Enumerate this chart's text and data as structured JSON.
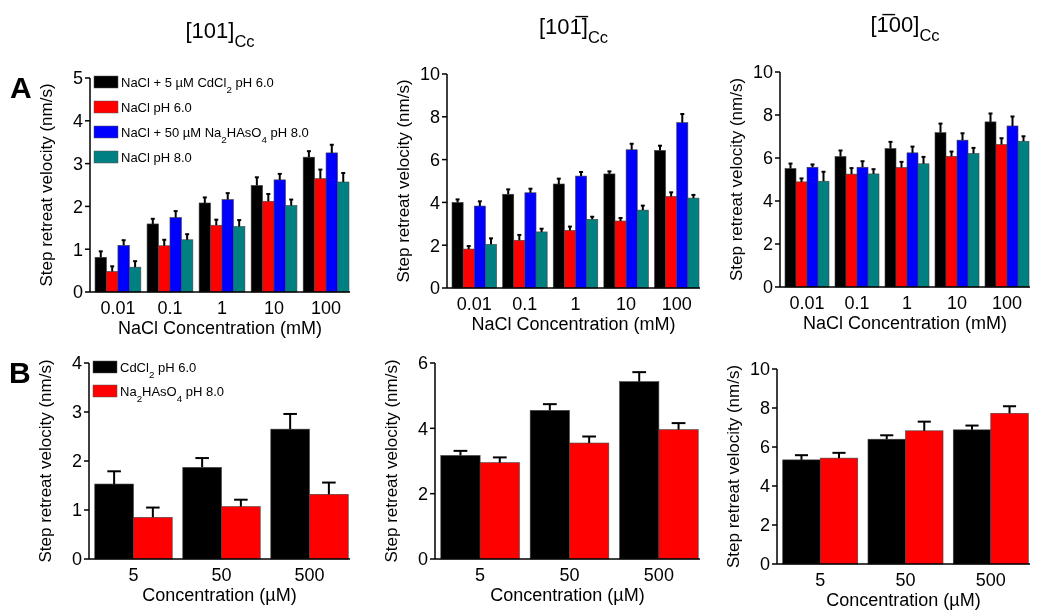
{
  "chart_data": [
    {
      "type": "bar",
      "title": "[101]$_{Cc}$",
      "xlabel": "NaCl Concentration (mM)",
      "ylabel": "Step retreat velocity (nm/s)",
      "annotations": [
        "A"
      ],
      "categories": [
        "0.01",
        "0.1",
        "1",
        "10",
        "100"
      ],
      "ylim": [
        0,
        5
      ],
      "yticks": [
        0,
        1,
        2,
        3,
        4,
        5
      ],
      "legend": "top left",
      "series": [
        {
          "name": "NaCl + 5 µM CdCl$_{2}$ pH 6.0",
          "color": "#000000",
          "values": [
            0.81,
            1.59,
            2.08,
            2.49,
            3.15
          ],
          "errors": [
            [
              0.81,
              0.95
            ],
            [
              1.59,
              1.71
            ],
            [
              2.08,
              2.21
            ],
            [
              2.49,
              2.68
            ],
            [
              3.15,
              3.29
            ]
          ]
        },
        {
          "name": "NaCl pH 6.0",
          "color": "#ff0000",
          "values": [
            0.48,
            1.08,
            1.56,
            2.12,
            2.65
          ],
          "errors": [
            [
              0.48,
              0.6
            ],
            [
              1.08,
              1.22
            ],
            [
              1.56,
              1.69
            ],
            [
              2.12,
              2.29
            ],
            [
              2.65,
              2.86
            ]
          ]
        },
        {
          "name": "NaCl + 50 µM Na$_{2}$HAsO$_{4}$ pH 8.0",
          "color": "#0000ff",
          "values": [
            1.09,
            1.74,
            2.16,
            2.62,
            3.25
          ],
          "errors": [
            [
              1.09,
              1.21
            ],
            [
              1.74,
              1.89
            ],
            [
              2.16,
              2.31
            ],
            [
              2.62,
              2.76
            ],
            [
              3.25,
              3.44
            ]
          ]
        },
        {
          "name": "NaCl pH 8.0",
          "color": "#008080",
          "values": [
            0.58,
            1.22,
            1.53,
            2.02,
            2.57
          ],
          "errors": [
            [
              0.58,
              0.72
            ],
            [
              1.22,
              1.35
            ],
            [
              1.53,
              1.68
            ],
            [
              2.02,
              2.16
            ],
            [
              2.57,
              2.78
            ]
          ]
        }
      ]
    },
    {
      "type": "bar",
      "title": "[101̅]$_{Cc}$",
      "xlabel": "NaCl Concentration (mM)",
      "ylabel": "Step retreat velocity (nm/s)",
      "categories": [
        "0.01",
        "0.1",
        "1",
        "10",
        "100"
      ],
      "ylim": [
        0,
        10
      ],
      "yticks": [
        0,
        2,
        4,
        6,
        8,
        10
      ],
      "series": [
        {
          "color": "#000000",
          "values": [
            4.0,
            4.38,
            4.86,
            5.33,
            6.43
          ],
          "errors": [
            [
              4.0,
              4.14
            ],
            [
              4.38,
              4.61
            ],
            [
              4.86,
              5.11
            ],
            [
              5.33,
              5.45
            ],
            [
              6.43,
              6.65
            ]
          ]
        },
        {
          "color": "#ff0000",
          "values": [
            1.82,
            2.23,
            2.69,
            3.13,
            4.28
          ],
          "errors": [
            [
              1.82,
              1.96
            ],
            [
              2.23,
              2.48
            ],
            [
              2.69,
              2.87
            ],
            [
              3.13,
              3.27
            ],
            [
              4.28,
              4.47
            ]
          ]
        },
        {
          "color": "#0000ff",
          "values": [
            3.83,
            4.45,
            5.23,
            6.46,
            7.73
          ],
          "errors": [
            [
              3.83,
              4.05
            ],
            [
              4.45,
              4.64
            ],
            [
              5.23,
              5.42
            ],
            [
              6.46,
              6.74
            ],
            [
              7.73,
              8.13
            ]
          ]
        },
        {
          "color": "#008080",
          "values": [
            2.04,
            2.62,
            3.21,
            3.64,
            4.2
          ],
          "errors": [
            [
              2.04,
              2.32
            ],
            [
              2.62,
              2.77
            ],
            [
              3.21,
              3.33
            ],
            [
              3.64,
              3.85
            ],
            [
              4.2,
              4.35
            ]
          ]
        }
      ]
    },
    {
      "type": "bar",
      "title": "[1̅00]$_{Cc}$",
      "xlabel": "NaCl Concentration (mM)",
      "ylabel": "Step retreat velocity (nm/s)",
      "categories": [
        "0.01",
        "0.1",
        "1",
        "10",
        "100"
      ],
      "ylim": [
        0,
        10
      ],
      "yticks": [
        0,
        2,
        4,
        6,
        8,
        10
      ],
      "series": [
        {
          "color": "#000000",
          "values": [
            5.51,
            6.07,
            6.44,
            7.18,
            7.68
          ],
          "errors": [
            [
              5.51,
              5.74
            ],
            [
              6.07,
              6.35
            ],
            [
              6.44,
              6.75
            ],
            [
              7.18,
              7.6
            ],
            [
              7.68,
              8.07
            ]
          ]
        },
        {
          "color": "#ff0000",
          "values": [
            4.89,
            5.25,
            5.56,
            6.08,
            6.63
          ],
          "errors": [
            [
              4.89,
              5.05
            ],
            [
              5.25,
              5.53
            ],
            [
              5.56,
              5.82
            ],
            [
              6.08,
              6.3
            ],
            [
              6.63,
              6.92
            ]
          ]
        },
        {
          "color": "#0000ff",
          "values": [
            5.57,
            5.57,
            6.24,
            6.83,
            7.49
          ],
          "errors": [
            [
              5.57,
              5.7
            ],
            [
              5.57,
              5.85
            ],
            [
              6.24,
              6.53
            ],
            [
              6.83,
              7.15
            ],
            [
              7.49,
              7.93
            ]
          ]
        },
        {
          "color": "#008080",
          "values": [
            4.92,
            5.26,
            5.73,
            6.21,
            6.78
          ],
          "errors": [
            [
              4.92,
              5.36
            ],
            [
              5.26,
              5.48
            ],
            [
              5.73,
              6.05
            ],
            [
              6.21,
              6.47
            ],
            [
              6.78,
              7.01
            ]
          ]
        }
      ]
    },
    {
      "type": "bar",
      "xlabel": "Concentration (µM)",
      "ylabel": "Step retreat velocity (nm/s)",
      "annotations": [
        "B"
      ],
      "categories": [
        "5",
        "50",
        "500"
      ],
      "ylim": [
        0,
        4
      ],
      "yticks": [
        0,
        1,
        2,
        3,
        4
      ],
      "legend": "top left",
      "series": [
        {
          "name": "CdCl$_{2}$ pH 6.0",
          "color": "#000000",
          "values": [
            1.53,
            1.87,
            2.65
          ],
          "errors": [
            [
              1.53,
              1.79
            ],
            [
              1.87,
              2.06
            ],
            [
              2.65,
              2.96
            ]
          ]
        },
        {
          "name": "Na$_{2}$HAsO$_{4}$ pH 8.0",
          "color": "#ff0000",
          "values": [
            0.85,
            1.07,
            1.32
          ],
          "errors": [
            [
              0.85,
              1.05
            ],
            [
              1.07,
              1.21
            ],
            [
              1.32,
              1.56
            ]
          ]
        }
      ]
    },
    {
      "type": "bar",
      "xlabel": "Concentration (µM)",
      "ylabel": "Step retreat velocity (nm/s)",
      "categories": [
        "5",
        "50",
        "500"
      ],
      "ylim": [
        0,
        6
      ],
      "yticks": [
        0,
        2,
        4,
        6
      ],
      "series": [
        {
          "color": "#000000",
          "values": [
            3.17,
            4.55,
            5.43
          ],
          "errors": [
            [
              3.17,
              3.31
            ],
            [
              4.55,
              4.74
            ],
            [
              5.43,
              5.72
            ]
          ]
        },
        {
          "color": "#ff0000",
          "values": [
            2.95,
            3.55,
            3.96
          ],
          "errors": [
            [
              2.95,
              3.11
            ],
            [
              3.55,
              3.75
            ],
            [
              3.96,
              4.16
            ]
          ]
        }
      ]
    },
    {
      "type": "bar",
      "xlabel": "Concentration (µM)",
      "ylabel": "Step retreat velocity (nm/s)",
      "categories": [
        "5",
        "50",
        "500"
      ],
      "ylim": [
        0,
        10
      ],
      "yticks": [
        0,
        2,
        4,
        6,
        8,
        10
      ],
      "series": [
        {
          "color": "#000000",
          "values": [
            5.34,
            6.4,
            6.88
          ],
          "errors": [
            [
              5.34,
              5.58
            ],
            [
              6.4,
              6.6
            ],
            [
              6.88,
              7.1
            ]
          ]
        },
        {
          "color": "#ff0000",
          "values": [
            5.43,
            6.83,
            7.73
          ],
          "errors": [
            [
              5.43,
              5.7
            ],
            [
              6.83,
              7.3
            ],
            [
              7.73,
              8.09
            ]
          ]
        }
      ]
    }
  ]
}
